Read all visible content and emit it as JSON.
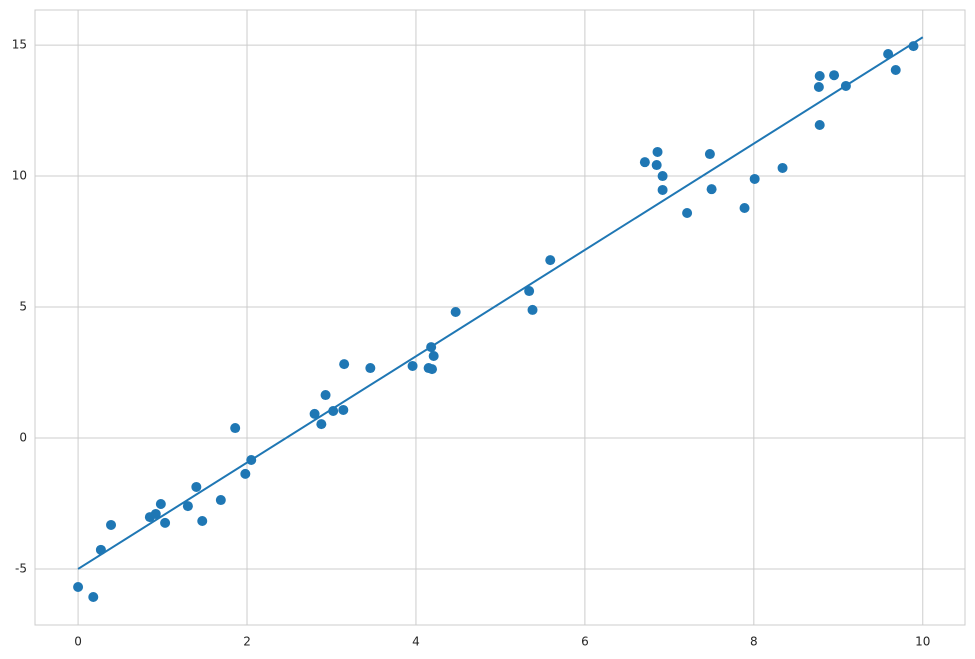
{
  "chart_data": {
    "type": "scatter",
    "xlim": [
      -0.51,
      10.5
    ],
    "ylim": [
      -7.14,
      16.34
    ],
    "xticks": [
      0,
      2,
      4,
      6,
      8,
      10
    ],
    "yticks": [
      -5,
      0,
      5,
      10,
      15
    ],
    "grid": true,
    "series": [
      {
        "mode": "markers",
        "color": "#1f77b4",
        "x": [
          0,
          0.18,
          0.27,
          0.39,
          0.85,
          0.92,
          0.98,
          1.03,
          1.3,
          1.4,
          1.47,
          1.69,
          1.86,
          1.98,
          2.05,
          2.8,
          2.88,
          2.93,
          3.02,
          3.14,
          3.15,
          3.46,
          3.96,
          4.18,
          4.15,
          4.19,
          4.21,
          4.47,
          5.34,
          5.38,
          5.59,
          6.71,
          6.86,
          6.85,
          6.92,
          6.92,
          7.21,
          7.48,
          7.5,
          7.89,
          8.01,
          8.34,
          8.78,
          8.77,
          8.78,
          8.95,
          9.09,
          9.59,
          9.68,
          9.89
        ],
        "values": [
          -5.69,
          -6.07,
          -4.27,
          -3.32,
          -3.02,
          -2.9,
          -2.52,
          -3.24,
          -2.6,
          -1.87,
          -3.17,
          -2.37,
          0.38,
          -1.37,
          -0.84,
          0.92,
          0.53,
          1.64,
          1.03,
          1.07,
          2.82,
          2.67,
          2.75,
          3.47,
          2.67,
          2.63,
          3.13,
          4.81,
          5.61,
          4.89,
          6.79,
          10.53,
          10.92,
          10.42,
          10.0,
          9.47,
          8.59,
          10.84,
          9.5,
          8.78,
          9.89,
          10.31,
          13.82,
          13.4,
          11.95,
          13.85,
          13.44,
          14.66,
          14.05,
          14.96
        ]
      },
      {
        "mode": "line",
        "color": "#1f77b4",
        "x": [
          0,
          10
        ],
        "values": [
          -5,
          15.3
        ]
      }
    ]
  }
}
